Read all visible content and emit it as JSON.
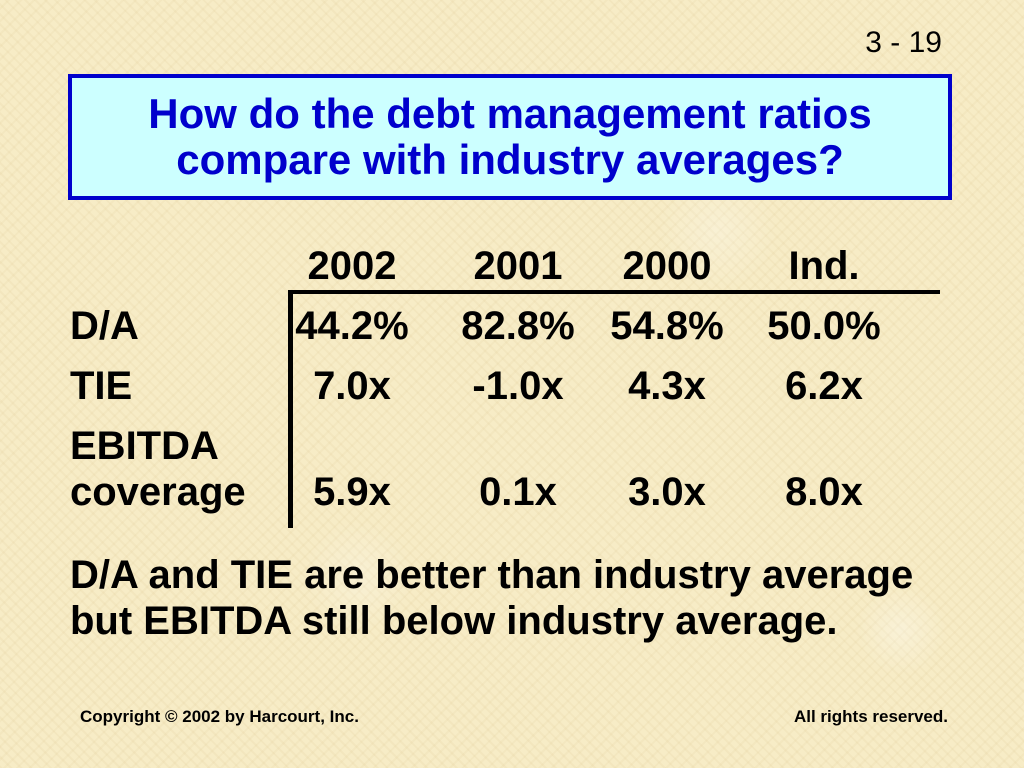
{
  "slide": {
    "number": "3 - 19",
    "title": "How do the debt management ratios compare with industry averages?"
  },
  "table": {
    "columns": [
      "2002",
      "2001",
      "2000",
      "Ind."
    ],
    "rows": [
      {
        "label": "D/A",
        "values": [
          "44.2%",
          "82.8%",
          "54.8%",
          "50.0%"
        ]
      },
      {
        "label": "TIE",
        "values": [
          "7.0x",
          "-1.0x",
          "4.3x",
          "6.2x"
        ]
      },
      {
        "label_line1": "EBITDA",
        "label_line2": "coverage",
        "values": [
          "5.9x",
          "0.1x",
          "3.0x",
          "8.0x"
        ]
      }
    ]
  },
  "conclusion": "D/A and TIE are better than industry average but EBITDA still below industry average.",
  "footer": {
    "left": "Copyright © 2002 by Harcourt, Inc.",
    "right": "All rights reserved."
  },
  "colors": {
    "title_text": "#0000cc",
    "title_border": "#0000cc",
    "title_background": "#ccffff",
    "background": "#f7ecc6",
    "text": "#000000"
  }
}
